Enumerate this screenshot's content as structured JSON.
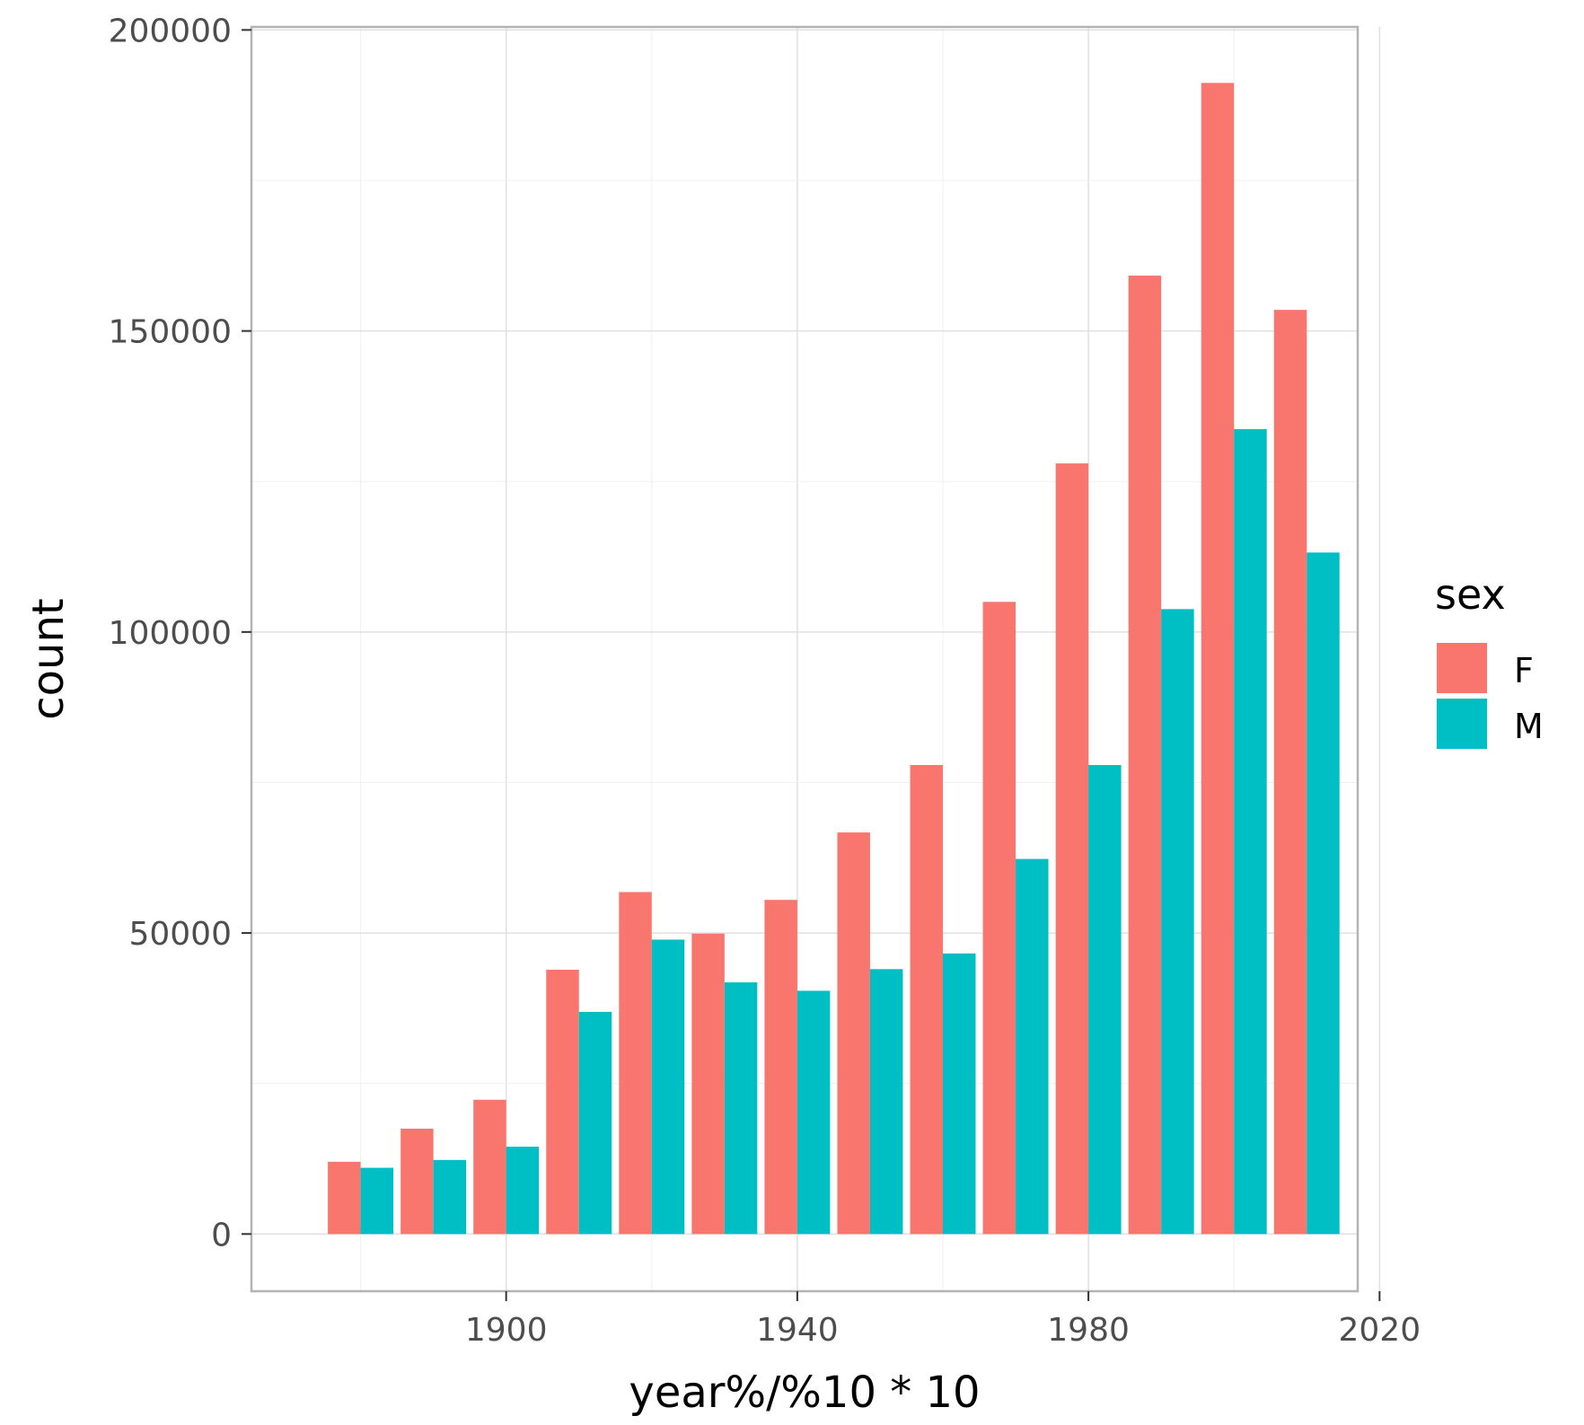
{
  "chart_data": {
    "type": "bar",
    "xlabel": "year%/%10 * 10",
    "ylabel": "count",
    "x": [
      1880,
      1890,
      1900,
      1910,
      1920,
      1930,
      1940,
      1950,
      1960,
      1970,
      1980,
      1990,
      2000,
      2010
    ],
    "series": [
      {
        "name": "F",
        "color": "#F8766D",
        "values": [
          12000,
          17500,
          22300,
          43900,
          56800,
          49900,
          55500,
          66700,
          77900,
          105000,
          128000,
          159200,
          191200,
          153500
        ]
      },
      {
        "name": "M",
        "color": "#00BFC4",
        "values": [
          11000,
          12300,
          14500,
          36900,
          48900,
          41800,
          40400,
          44000,
          46600,
          62300,
          77900,
          103800,
          133700,
          113200
        ]
      }
    ],
    "xlim": [
      1865,
      2017
    ],
    "ylim": [
      -9500,
      200500
    ],
    "x_ticks": [
      1900,
      1940,
      1980,
      2020
    ],
    "x_tick_labels": [
      "1900",
      "1940",
      "1980",
      "2020"
    ],
    "y_ticks": [
      0,
      50000,
      100000,
      150000,
      200000
    ],
    "y_tick_labels": [
      "0",
      "50000",
      "100000",
      "150000",
      "200000"
    ],
    "legend_title": "sex",
    "legend_position": "right",
    "grid": true
  }
}
